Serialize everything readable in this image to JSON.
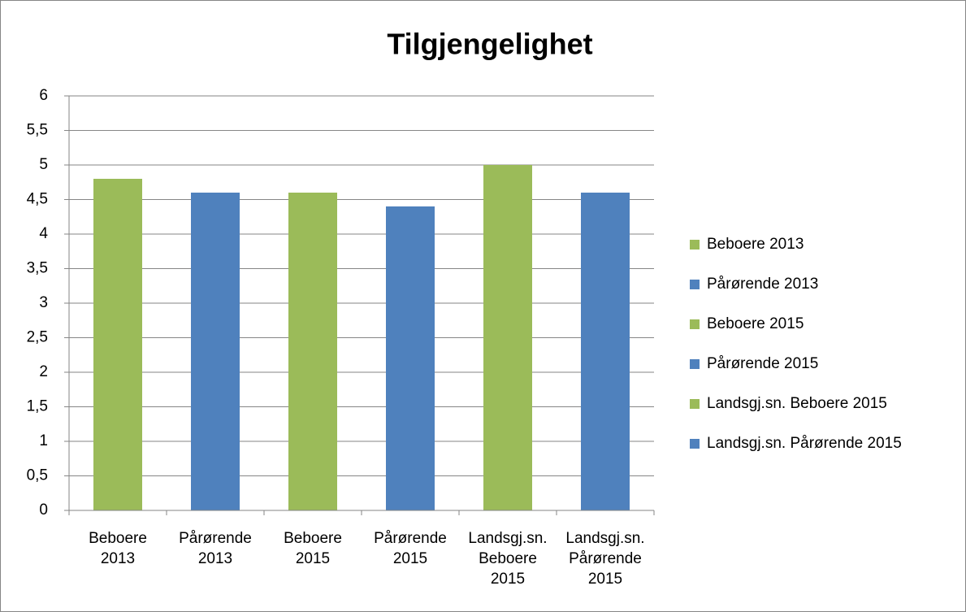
{
  "chart_data": {
    "type": "bar",
    "title": "Tilgjengelighet",
    "categories": [
      "Beboere 2013",
      "Pårørende 2013",
      "Beboere 2015",
      "Pårørende 2015",
      "Landsgj.sn. Beboere 2015",
      "Landsgj.sn. Pårørende 2015"
    ],
    "values": [
      4.8,
      4.6,
      4.6,
      4.4,
      5,
      4.6
    ],
    "colors": [
      "#9bbb59",
      "#4f81bd",
      "#9bbb59",
      "#4f81bd",
      "#9bbb59",
      "#4f81bd"
    ],
    "ylim": [
      0,
      6
    ],
    "yticks": [
      0,
      {
        "value": 0.5,
        "label": "0,5"
      },
      1,
      {
        "value": 1.5,
        "label": "1,5"
      },
      2,
      {
        "value": 2.5,
        "label": "2,5"
      },
      3,
      {
        "value": 3.5,
        "label": "3,5"
      },
      4,
      {
        "value": 4.5,
        "label": "4,5"
      },
      5,
      {
        "value": 5.5,
        "label": "5,5"
      },
      6
    ],
    "grid": true,
    "legend": "right"
  }
}
